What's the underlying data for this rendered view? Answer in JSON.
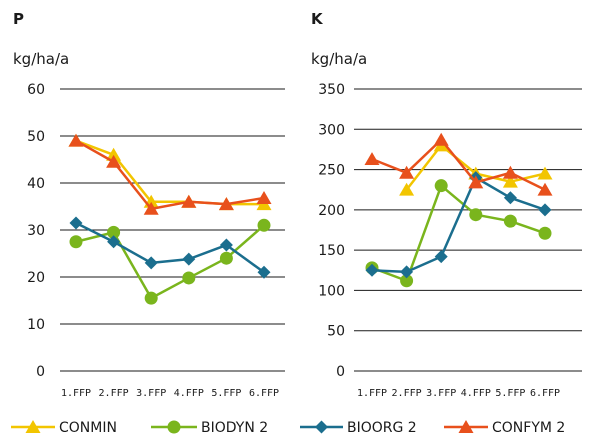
{
  "chart_data": [
    {
      "type": "line",
      "title": "P",
      "ylabel": "kg/ha/a",
      "xlabel": "",
      "categories": [
        "1.FFP",
        "2.FFP",
        "3.FFP",
        "4.FFP",
        "5.FFP",
        "6.FFP"
      ],
      "ylim": [
        0,
        60
      ],
      "yticks": [
        "0",
        "10",
        "20",
        "30",
        "40",
        "50",
        "60"
      ],
      "grid": "horizontal",
      "series": [
        {
          "name": "CONMIN",
          "values": [
            49,
            46,
            36,
            36,
            35.5,
            35.5
          ]
        },
        {
          "name": "BIODYN 2",
          "values": [
            27.5,
            29.5,
            15.5,
            19.8,
            24,
            31
          ]
        },
        {
          "name": "BIOORG 2",
          "values": [
            31.5,
            27.5,
            23,
            23.8,
            26.8,
            21
          ]
        },
        {
          "name": "CONFYM 2",
          "values": [
            49,
            44.5,
            34.5,
            36,
            35.5,
            36.8
          ]
        }
      ]
    },
    {
      "type": "line",
      "title": "K",
      "ylabel": "kg/ha/a",
      "xlabel": "",
      "categories": [
        "1.FFP",
        "2.FFP",
        "3.FFP",
        "4.FFP",
        "5.FFP",
        "6.FFP"
      ],
      "ylim": [
        0,
        350
      ],
      "yticks": [
        "0",
        "50",
        "100",
        "150",
        "200",
        "250",
        "300",
        "350"
      ],
      "grid": "horizontal",
      "series": [
        {
          "name": "CONMIN",
          "values": [
            null,
            225,
            280,
            245,
            235,
            245
          ]
        },
        {
          "name": "BIODYN 2",
          "values": [
            128,
            112,
            230,
            194,
            186,
            171
          ]
        },
        {
          "name": "BIOORG 2",
          "values": [
            125,
            123,
            142,
            240,
            215,
            200
          ]
        },
        {
          "name": "CONFYM 2",
          "values": [
            263,
            246,
            287,
            234,
            246,
            225
          ]
        }
      ]
    }
  ],
  "legend": {
    "placement": "bottom",
    "items": [
      {
        "label": "CONMIN",
        "marker": "triangle"
      },
      {
        "label": "BIODYN 2",
        "marker": "circle"
      },
      {
        "label": "BIOORG 2",
        "marker": "diamond"
      },
      {
        "label": "CONFYM 2",
        "marker": "triangle"
      }
    ]
  },
  "colors": {
    "CONMIN": "#f2c500",
    "BIODYN 2": "#7ab51d",
    "BIOORG 2": "#1b6e8e",
    "CONFYM 2": "#e8501c",
    "gridline": "#1a1a1a"
  }
}
